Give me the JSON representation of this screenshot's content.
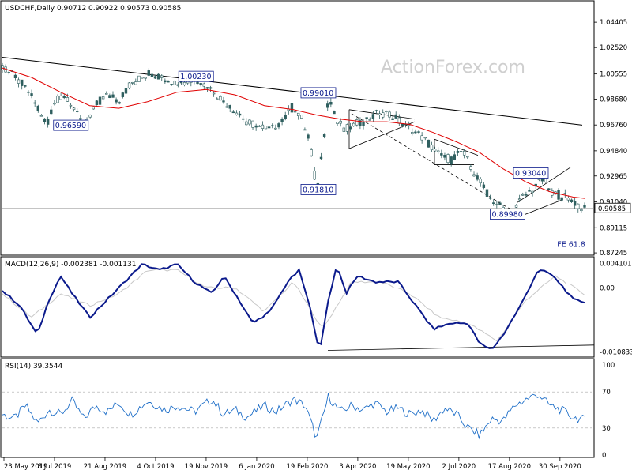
{
  "header": {
    "symbol_line": "USDCHF,Daily  0.90712 0.90922 0.90573 0.90585",
    "watermark": "ActionForex.com",
    "macd_label": "MACD(12,26,9) -0.002381 -0.001131",
    "rsi_label": "RSI(14) 39.3544"
  },
  "colors": {
    "candle": "#2f5f5f",
    "ma": "#e00000",
    "macd_line": "#0b1a8c",
    "signal_line": "#c8c8c8",
    "trendline": "#000000",
    "rsi": "#1f6fc8",
    "border": "#000000",
    "grid_dash": "#808080",
    "price_tag_bg": "#ffffff"
  },
  "chart_data": [
    {
      "type": "candlestick",
      "name": "price",
      "ylim": [
        0.8725,
        1.05
      ],
      "y_ticks": [
        "1.04405",
        "1.02520",
        "1.00555",
        "0.98680",
        "0.96760",
        "0.94840",
        "0.92965",
        "0.91040",
        "0.89115",
        "0.87245"
      ],
      "current_price": "0.90585",
      "x_labels": [
        "23 May 2019",
        "8 Jul 2019",
        "21 Aug 2019",
        "4 Oct 2019",
        "19 Nov 2019",
        "6 Jan 2020",
        "19 Feb 2020",
        "3 Apr 2020",
        "19 May 2020",
        "2 Jul 2020",
        "17 Aug 2020",
        "30 Sep 2020"
      ],
      "annotations": [
        {
          "text": "1.00230",
          "value": 1.0023,
          "x_frac": 0.33
        },
        {
          "text": "0.96590",
          "value": 0.9659,
          "x_frac": 0.115
        },
        {
          "text": "0.99010",
          "value": 0.9901,
          "x_frac": 0.54
        },
        {
          "text": "0.91810",
          "value": 0.9181,
          "x_frac": 0.54
        },
        {
          "text": "0.93040",
          "value": 0.9304,
          "x_frac": 0.905
        },
        {
          "text": "0.89980",
          "value": 0.8998,
          "x_frac": 0.865
        },
        {
          "text": "FE 61.8",
          "value": 0.8775,
          "x_frac": 0.98
        }
      ],
      "price_path": [
        [
          0,
          1.01
        ],
        [
          0.02,
          1.004
        ],
        [
          0.04,
          0.995
        ],
        [
          0.06,
          0.982
        ],
        [
          0.075,
          0.968
        ],
        [
          0.09,
          0.985
        ],
        [
          0.11,
          0.99
        ],
        [
          0.13,
          0.974
        ],
        [
          0.14,
          0.966
        ],
        [
          0.16,
          0.982
        ],
        [
          0.18,
          0.99
        ],
        [
          0.2,
          0.986
        ],
        [
          0.22,
          0.998
        ],
        [
          0.25,
          1.006
        ],
        [
          0.28,
          1.002
        ],
        [
          0.3,
          0.999
        ],
        [
          0.33,
          1.002
        ],
        [
          0.36,
          0.994
        ],
        [
          0.38,
          0.985
        ],
        [
          0.4,
          0.978
        ],
        [
          0.42,
          0.97
        ],
        [
          0.44,
          0.967
        ],
        [
          0.46,
          0.964
        ],
        [
          0.48,
          0.97
        ],
        [
          0.5,
          0.982
        ],
        [
          0.515,
          0.972
        ],
        [
          0.53,
          0.95
        ],
        [
          0.54,
          0.918
        ],
        [
          0.55,
          0.95
        ],
        [
          0.56,
          0.988
        ],
        [
          0.575,
          0.97
        ],
        [
          0.59,
          0.965
        ],
        [
          0.61,
          0.968
        ],
        [
          0.63,
          0.972
        ],
        [
          0.65,
          0.978
        ],
        [
          0.67,
          0.974
        ],
        [
          0.69,
          0.968
        ],
        [
          0.71,
          0.962
        ],
        [
          0.73,
          0.955
        ],
        [
          0.75,
          0.945
        ],
        [
          0.77,
          0.942
        ],
        [
          0.79,
          0.948
        ],
        [
          0.8,
          0.94
        ],
        [
          0.82,
          0.925
        ],
        [
          0.84,
          0.912
        ],
        [
          0.86,
          0.905
        ],
        [
          0.875,
          0.901
        ],
        [
          0.89,
          0.912
        ],
        [
          0.91,
          0.92
        ],
        [
          0.93,
          0.928
        ],
        [
          0.94,
          0.918
        ],
        [
          0.96,
          0.915
        ],
        [
          0.98,
          0.91
        ],
        [
          1.0,
          0.906
        ]
      ],
      "ma_path": [
        [
          0,
          1.01
        ],
        [
          0.05,
          1.003
        ],
        [
          0.1,
          0.992
        ],
        [
          0.15,
          0.982
        ],
        [
          0.2,
          0.98
        ],
        [
          0.25,
          0.985
        ],
        [
          0.3,
          0.992
        ],
        [
          0.35,
          0.994
        ],
        [
          0.4,
          0.99
        ],
        [
          0.45,
          0.982
        ],
        [
          0.5,
          0.979
        ],
        [
          0.54,
          0.975
        ],
        [
          0.58,
          0.972
        ],
        [
          0.62,
          0.97
        ],
        [
          0.66,
          0.97
        ],
        [
          0.7,
          0.968
        ],
        [
          0.74,
          0.962
        ],
        [
          0.78,
          0.955
        ],
        [
          0.82,
          0.947
        ],
        [
          0.86,
          0.935
        ],
        [
          0.9,
          0.925
        ],
        [
          0.94,
          0.918
        ],
        [
          0.98,
          0.914
        ],
        [
          1.0,
          0.913
        ]
      ]
    },
    {
      "type": "line",
      "name": "MACD",
      "ylim": [
        -0.0112,
        0.0046
      ],
      "y_ticks": [
        "0.004101",
        "0.00",
        "-0.010833"
      ],
      "series": [
        {
          "name": "MACD",
          "values_path": [
            [
              0,
              -0.0005
            ],
            [
              0.03,
              -0.003
            ],
            [
              0.06,
              -0.008
            ],
            [
              0.08,
              -0.002
            ],
            [
              0.1,
              0.002
            ],
            [
              0.12,
              -0.001
            ],
            [
              0.15,
              -0.005
            ],
            [
              0.18,
              -0.002
            ],
            [
              0.21,
              0.001
            ],
            [
              0.24,
              0.004
            ],
            [
              0.27,
              0.003
            ],
            [
              0.3,
              0.004
            ],
            [
              0.33,
              0.001
            ],
            [
              0.36,
              -0.001
            ],
            [
              0.38,
              0.002
            ],
            [
              0.4,
              -0.001
            ],
            [
              0.43,
              -0.006
            ],
            [
              0.46,
              -0.004
            ],
            [
              0.49,
              0.001
            ],
            [
              0.51,
              0.003
            ],
            [
              0.53,
              -0.004
            ],
            [
              0.545,
              -0.011
            ],
            [
              0.56,
              -0.002
            ],
            [
              0.575,
              0.004
            ],
            [
              0.59,
              -0.001
            ],
            [
              0.61,
              0.002
            ],
            [
              0.64,
              0.001
            ],
            [
              0.68,
              0.001
            ],
            [
              0.71,
              -0.003
            ],
            [
              0.74,
              -0.007
            ],
            [
              0.77,
              -0.006
            ],
            [
              0.8,
              -0.006
            ],
            [
              0.82,
              -0.0095
            ],
            [
              0.84,
              -0.0105
            ],
            [
              0.86,
              -0.008
            ],
            [
              0.89,
              -0.003
            ],
            [
              0.92,
              0.003
            ],
            [
              0.94,
              0.0025
            ],
            [
              0.96,
              0.0005
            ],
            [
              0.98,
              -0.002
            ],
            [
              1.0,
              -0.0024
            ]
          ]
        },
        {
          "name": "Signal",
          "values_path": [
            [
              0,
              -0.001
            ],
            [
              0.05,
              -0.005
            ],
            [
              0.1,
              -0.001
            ],
            [
              0.15,
              -0.003
            ],
            [
              0.2,
              -0.001
            ],
            [
              0.25,
              0.003
            ],
            [
              0.3,
              0.003
            ],
            [
              0.35,
              0.0
            ],
            [
              0.4,
              0.0
            ],
            [
              0.45,
              -0.004
            ],
            [
              0.5,
              0.001
            ],
            [
              0.55,
              -0.007
            ],
            [
              0.6,
              0.001
            ],
            [
              0.65,
              0.001
            ],
            [
              0.7,
              -0.001
            ],
            [
              0.75,
              -0.005
            ],
            [
              0.8,
              -0.006
            ],
            [
              0.85,
              -0.009
            ],
            [
              0.9,
              -0.002
            ],
            [
              0.95,
              0.002
            ],
            [
              1.0,
              -0.0011
            ]
          ]
        }
      ]
    },
    {
      "type": "line",
      "name": "RSI",
      "ylim": [
        0,
        100
      ],
      "y_ticks": [
        "100",
        "70",
        "30",
        "0"
      ],
      "series": [
        {
          "name": "RSI",
          "values_path": [
            [
              0,
              45
            ],
            [
              0.02,
              40
            ],
            [
              0.04,
              55
            ],
            [
              0.06,
              35
            ],
            [
              0.08,
              50
            ],
            [
              0.1,
              45
            ],
            [
              0.12,
              60
            ],
            [
              0.14,
              40
            ],
            [
              0.16,
              55
            ],
            [
              0.18,
              48
            ],
            [
              0.2,
              58
            ],
            [
              0.22,
              45
            ],
            [
              0.25,
              60
            ],
            [
              0.28,
              50
            ],
            [
              0.3,
              55
            ],
            [
              0.33,
              48
            ],
            [
              0.36,
              62
            ],
            [
              0.38,
              45
            ],
            [
              0.4,
              50
            ],
            [
              0.42,
              42
            ],
            [
              0.45,
              55
            ],
            [
              0.47,
              48
            ],
            [
              0.5,
              62
            ],
            [
              0.52,
              55
            ],
            [
              0.54,
              18
            ],
            [
              0.56,
              65
            ],
            [
              0.58,
              48
            ],
            [
              0.6,
              55
            ],
            [
              0.62,
              50
            ],
            [
              0.64,
              58
            ],
            [
              0.66,
              48
            ],
            [
              0.68,
              52
            ],
            [
              0.7,
              45
            ],
            [
              0.72,
              50
            ],
            [
              0.74,
              38
            ],
            [
              0.76,
              52
            ],
            [
              0.78,
              45
            ],
            [
              0.8,
              30
            ],
            [
              0.82,
              22
            ],
            [
              0.84,
              40
            ],
            [
              0.86,
              38
            ],
            [
              0.88,
              55
            ],
            [
              0.9,
              62
            ],
            [
              0.92,
              68
            ],
            [
              0.94,
              55
            ],
            [
              0.96,
              50
            ],
            [
              0.98,
              42
            ],
            [
              1.0,
              39
            ]
          ]
        }
      ]
    }
  ]
}
